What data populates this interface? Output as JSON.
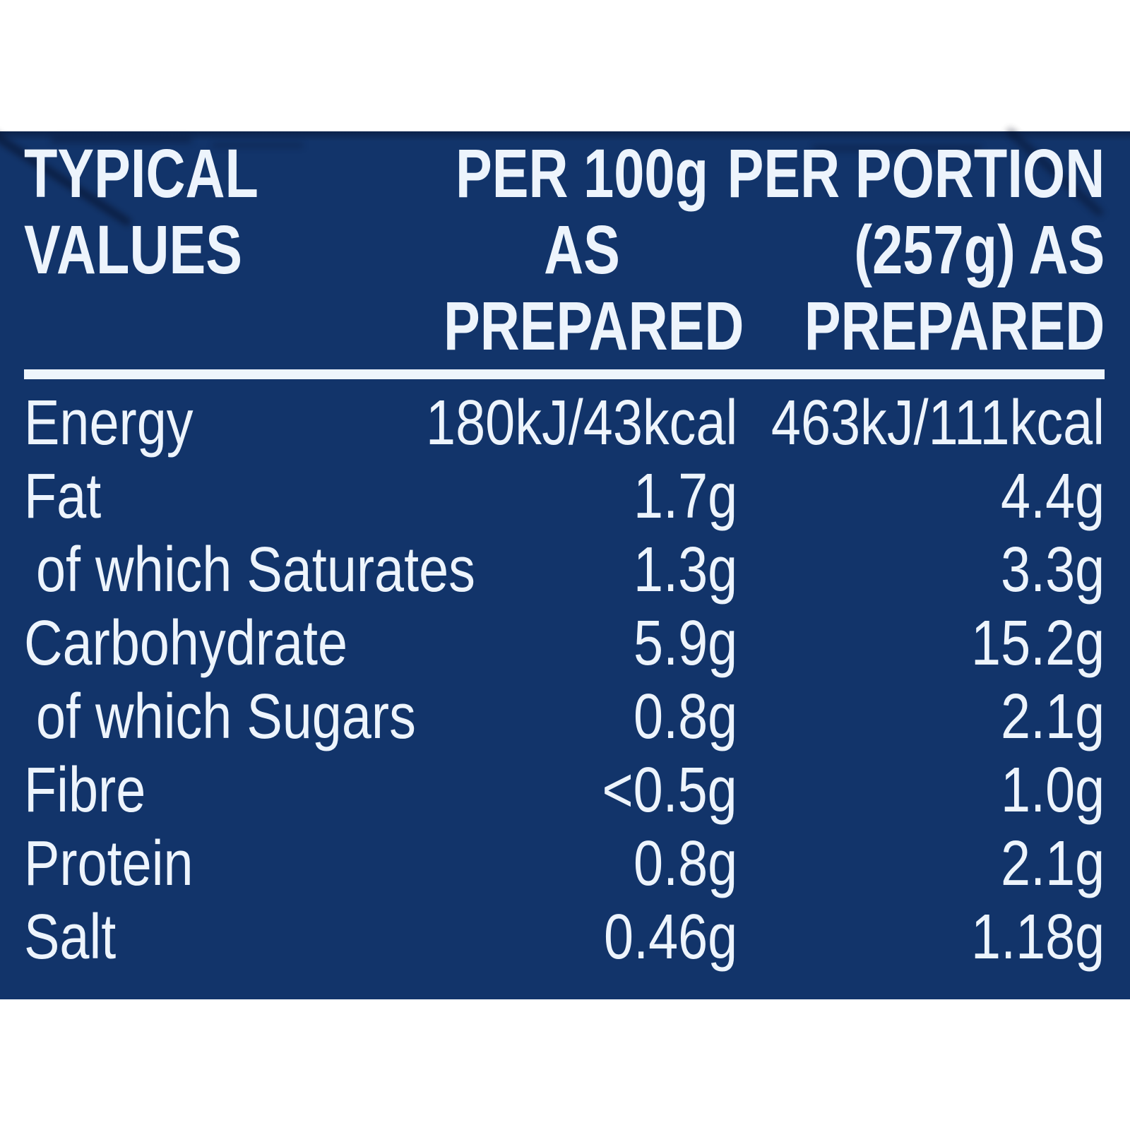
{
  "colors": {
    "page_background": "#ffffff",
    "panel_background": "#12346a",
    "text": "#edf4fc",
    "rule": "#eef5fc"
  },
  "table": {
    "header": {
      "typical_values_lines": [
        "TYPICAL",
        "VALUES"
      ],
      "per_100g_lines": [
        "PER 100g",
        "AS PREPARED"
      ],
      "per_portion_lines": [
        "PER PORTION",
        "(257g) AS",
        "PREPARED"
      ]
    },
    "rows": [
      {
        "label": "Energy",
        "per100g": "180kJ/43kcal",
        "portion": "463kJ/111kcal"
      },
      {
        "label": "Fat",
        "per100g": "1.7g",
        "portion": "4.4g"
      },
      {
        "label": "of which Saturates",
        "per100g": "1.3g",
        "portion": "3.3g"
      },
      {
        "label": "Carbohydrate",
        "per100g": "5.9g",
        "portion": "15.2g"
      },
      {
        "label": "of which Sugars",
        "per100g": "0.8g",
        "portion": "2.1g"
      },
      {
        "label": "Fibre",
        "per100g": "<0.5g",
        "portion": "1.0g"
      },
      {
        "label": "Protein",
        "per100g": "0.8g",
        "portion": "2.1g"
      },
      {
        "label": "Salt",
        "per100g": "0.46g",
        "portion": "1.18g"
      }
    ]
  }
}
